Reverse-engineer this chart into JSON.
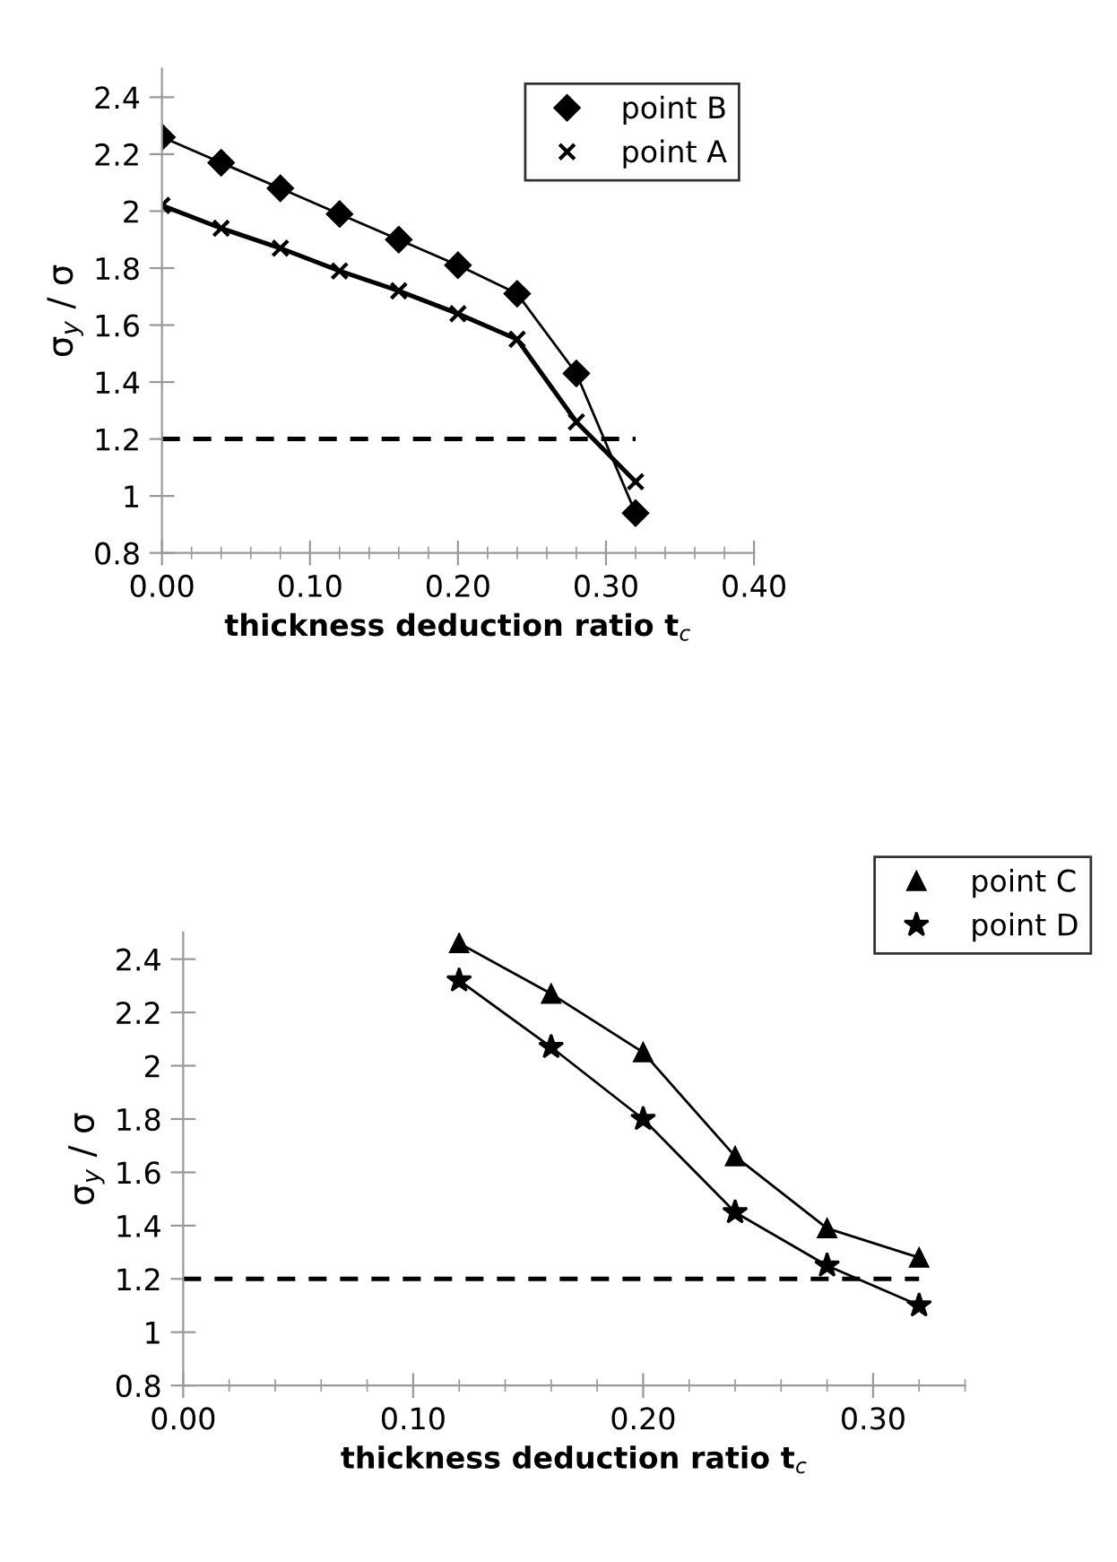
{
  "chart_data": [
    {
      "type": "line",
      "xlabel": "thickness deduction ratio t$_{c}$",
      "ylabel": "σ$_{y}$ / σ",
      "x": [
        0.0,
        0.04,
        0.08,
        0.12,
        0.16,
        0.2,
        0.24,
        0.28,
        0.32
      ],
      "series": [
        {
          "name": "point B",
          "color": "#000000",
          "marker": "diamond",
          "values": [
            2.26,
            2.17,
            2.08,
            1.99,
            1.9,
            1.81,
            1.71,
            1.43,
            0.94
          ]
        },
        {
          "name": "point A",
          "color": "#000000",
          "marker": "cross",
          "values": [
            2.02,
            1.94,
            1.87,
            1.79,
            1.72,
            1.64,
            1.55,
            1.26,
            1.05
          ]
        }
      ],
      "xlim": [
        0,
        0.4
      ],
      "xticks": [
        {
          "value": 0,
          "label": "0.00"
        },
        {
          "value": 0.1,
          "label": "0.10"
        },
        {
          "value": 0.2,
          "label": "0.20"
        },
        {
          "value": 0.3,
          "label": "0.30"
        },
        {
          "value": 0.4,
          "label": "0.40"
        }
      ],
      "ylim": [
        0.8,
        2.5
      ],
      "yticks": [
        0.8,
        1,
        1.2,
        1.4,
        1.6,
        1.8,
        2,
        2.2,
        2.4
      ],
      "ref_lines": [
        {
          "axis": "y",
          "value": 1.2,
          "label": null,
          "color": "#000000",
          "line_style": "dashed"
        }
      ],
      "grid": false,
      "legend": "top right"
    },
    {
      "type": "line",
      "xlabel": "thickness deduction ratio t$_{c}$",
      "ylabel": "σ$_{y}$ / σ",
      "x": [
        0.12,
        0.16,
        0.2,
        0.24,
        0.28,
        0.32
      ],
      "series": [
        {
          "name": "point C",
          "color": "#000000",
          "marker": "triangle",
          "values": [
            2.46,
            2.27,
            2.05,
            1.66,
            1.39,
            1.28
          ]
        },
        {
          "name": "point D",
          "color": "#000000",
          "marker": "star",
          "values": [
            2.32,
            2.07,
            1.8,
            1.45,
            1.25,
            1.1
          ]
        }
      ],
      "xlim": [
        0,
        0.34
      ],
      "xticks": [
        {
          "value": 0,
          "label": "0.00"
        },
        {
          "value": 0.1,
          "label": "0.10"
        },
        {
          "value": 0.2,
          "label": "0.20"
        },
        {
          "value": 0.3,
          "label": "0.30"
        }
      ],
      "ylim": [
        0.8,
        2.5
      ],
      "yticks": [
        0.8,
        1,
        1.2,
        1.4,
        1.6,
        1.8,
        2,
        2.2,
        2.4
      ],
      "ref_lines": [
        {
          "axis": "y",
          "value": 1.2,
          "label": null,
          "color": "#000000",
          "line_style": "dashed"
        }
      ],
      "grid": false,
      "legend": "top right"
    }
  ]
}
